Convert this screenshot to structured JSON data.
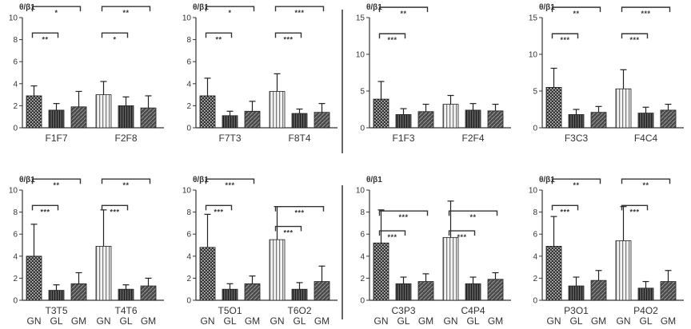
{
  "figure": {
    "x_group_labels": [
      "GN",
      "GL",
      "GM"
    ],
    "colors": {
      "ink": "#333333",
      "bar_fill": "#5a5a5a",
      "bar_light": "#e6e6e6"
    }
  },
  "chart_data": [
    {
      "id": "p1",
      "type": "bar",
      "ylabel": "θ/β1",
      "ylim": [
        0,
        10
      ],
      "yticks": [
        0,
        2,
        4,
        6,
        8,
        10
      ],
      "groups": [
        "F1F7",
        "F2F8"
      ],
      "values": [
        [
          2.9,
          1.6,
          1.9
        ],
        [
          3.0,
          2.0,
          1.8
        ]
      ],
      "errors": [
        [
          0.9,
          0.6,
          1.4
        ],
        [
          1.2,
          0.8,
          1.1
        ]
      ],
      "significance": [
        {
          "group": 0,
          "from": 0,
          "to": 1,
          "label": "**",
          "level": 8.6
        },
        {
          "group": 0,
          "from": 0,
          "to": 2,
          "label": "*",
          "level": 11.0
        },
        {
          "group": 1,
          "from": 0,
          "to": 1,
          "label": "*",
          "level": 8.6
        },
        {
          "group": 1,
          "from": 0,
          "to": 2,
          "label": "**",
          "level": 11.0
        }
      ]
    },
    {
      "id": "p2",
      "type": "bar",
      "ylabel": "θ/β1",
      "ylim": [
        0,
        10
      ],
      "yticks": [
        0,
        2,
        4,
        6,
        8,
        10
      ],
      "groups": [
        "F7T3",
        "F8T4"
      ],
      "values": [
        [
          2.9,
          1.1,
          1.5
        ],
        [
          3.3,
          1.3,
          1.4
        ]
      ],
      "errors": [
        [
          1.6,
          0.4,
          0.9
        ],
        [
          1.6,
          0.4,
          0.8
        ]
      ],
      "significance": [
        {
          "group": 0,
          "from": 0,
          "to": 1,
          "label": "**",
          "level": 8.6
        },
        {
          "group": 0,
          "from": 0,
          "to": 2,
          "label": "*",
          "level": 11.0
        },
        {
          "group": 1,
          "from": 0,
          "to": 1,
          "label": "***",
          "level": 8.6
        },
        {
          "group": 1,
          "from": 0,
          "to": 2,
          "label": "***",
          "level": 11.0
        }
      ]
    },
    {
      "id": "p3",
      "type": "bar",
      "ylabel": "θ/β1",
      "ylim": [
        0,
        15
      ],
      "yticks": [
        0,
        5,
        10,
        15
      ],
      "groups": [
        "F1F3",
        "F2F4"
      ],
      "values": [
        [
          3.9,
          1.8,
          2.2
        ],
        [
          3.2,
          2.4,
          2.3
        ]
      ],
      "errors": [
        [
          2.4,
          0.8,
          1.0
        ],
        [
          1.2,
          0.9,
          0.9
        ]
      ],
      "significance": [
        {
          "group": 0,
          "from": 0,
          "to": 1,
          "label": "***",
          "level": 12.8
        },
        {
          "group": 0,
          "from": 0,
          "to": 2,
          "label": "**",
          "level": 16.4
        }
      ]
    },
    {
      "id": "p4",
      "type": "bar",
      "ylabel": "θ/β1",
      "ylim": [
        0,
        15
      ],
      "yticks": [
        0,
        5,
        10,
        15
      ],
      "groups": [
        "F3C3",
        "F4C4"
      ],
      "values": [
        [
          5.5,
          1.8,
          2.1
        ],
        [
          5.3,
          2.0,
          2.4
        ]
      ],
      "errors": [
        [
          2.6,
          0.7,
          0.8
        ],
        [
          2.6,
          0.8,
          0.8
        ]
      ],
      "significance": [
        {
          "group": 0,
          "from": 0,
          "to": 1,
          "label": "***",
          "level": 12.8
        },
        {
          "group": 0,
          "from": 0,
          "to": 2,
          "label": "**",
          "level": 16.4
        },
        {
          "group": 1,
          "from": 0,
          "to": 1,
          "label": "***",
          "level": 12.8
        },
        {
          "group": 1,
          "from": 0,
          "to": 2,
          "label": "***",
          "level": 16.4
        }
      ]
    },
    {
      "id": "p5",
      "type": "bar",
      "ylabel": "θ/β1",
      "ylim": [
        0,
        10
      ],
      "yticks": [
        0,
        2,
        4,
        6,
        8,
        10
      ],
      "groups": [
        "T3T5",
        "T4T6"
      ],
      "values": [
        [
          4.0,
          0.9,
          1.5
        ],
        [
          4.9,
          1.0,
          1.3
        ]
      ],
      "errors": [
        [
          2.9,
          0.5,
          1.0
        ],
        [
          3.3,
          0.4,
          0.7
        ]
      ],
      "significance": [
        {
          "group": 0,
          "from": 0,
          "to": 1,
          "label": "***",
          "level": 8.6
        },
        {
          "group": 0,
          "from": 0,
          "to": 2,
          "label": "**",
          "level": 11.0
        },
        {
          "group": 1,
          "from": 0,
          "to": 1,
          "label": "***",
          "level": 8.6
        },
        {
          "group": 1,
          "from": 0,
          "to": 2,
          "label": "**",
          "level": 11.0
        }
      ]
    },
    {
      "id": "p6",
      "type": "bar",
      "ylabel": "θ/β1",
      "ylim": [
        0,
        10
      ],
      "yticks": [
        0,
        2,
        4,
        6,
        8,
        10
      ],
      "groups": [
        "T5O1",
        "T6O2"
      ],
      "values": [
        [
          4.8,
          1.0,
          1.5
        ],
        [
          5.5,
          1.0,
          1.7
        ]
      ],
      "errors": [
        [
          3.0,
          0.5,
          0.7
        ],
        [
          3.0,
          0.6,
          1.4
        ]
      ],
      "significance": [
        {
          "group": 0,
          "from": 0,
          "to": 1,
          "label": "***",
          "level": 8.6
        },
        {
          "group": 0,
          "from": 0,
          "to": 2,
          "label": "***",
          "level": 11.0
        },
        {
          "group": 1,
          "from": 0,
          "to": 1,
          "label": "***",
          "level": 6.7
        },
        {
          "group": 1,
          "from": 0,
          "to": 2,
          "label": "***",
          "level": 8.5
        }
      ]
    },
    {
      "id": "p7",
      "type": "bar",
      "ylabel": "θ/β1",
      "ylim": [
        0,
        10
      ],
      "yticks": [
        0,
        2,
        4,
        6,
        8,
        10
      ],
      "groups": [
        "C3P3",
        "C4P4"
      ],
      "values": [
        [
          5.2,
          1.5,
          1.7
        ],
        [
          5.7,
          1.5,
          1.9
        ]
      ],
      "errors": [
        [
          3.0,
          0.6,
          0.7
        ],
        [
          3.3,
          0.6,
          0.6
        ]
      ],
      "significance": [
        {
          "group": 0,
          "from": 0,
          "to": 1,
          "label": "***",
          "level": 6.3
        },
        {
          "group": 0,
          "from": 0,
          "to": 2,
          "label": "***",
          "level": 8.1
        },
        {
          "group": 1,
          "from": 0,
          "to": 1,
          "label": "***",
          "level": 6.3
        },
        {
          "group": 1,
          "from": 0,
          "to": 2,
          "label": "**",
          "level": 8.1
        }
      ]
    },
    {
      "id": "p8",
      "type": "bar",
      "ylabel": "θ/β1",
      "ylim": [
        0,
        10
      ],
      "yticks": [
        0,
        2,
        4,
        6,
        8,
        10
      ],
      "groups": [
        "P3O1",
        "P4O2"
      ],
      "values": [
        [
          4.9,
          1.3,
          1.8
        ],
        [
          5.4,
          1.1,
          1.7
        ]
      ],
      "errors": [
        [
          2.7,
          0.8,
          0.9
        ],
        [
          3.1,
          0.6,
          1.0
        ]
      ],
      "significance": [
        {
          "group": 0,
          "from": 0,
          "to": 1,
          "label": "***",
          "level": 8.6
        },
        {
          "group": 0,
          "from": 0,
          "to": 2,
          "label": "**",
          "level": 11.0
        },
        {
          "group": 1,
          "from": 0,
          "to": 1,
          "label": "***",
          "level": 8.6
        },
        {
          "group": 1,
          "from": 0,
          "to": 2,
          "label": "**",
          "level": 11.0
        }
      ]
    }
  ]
}
